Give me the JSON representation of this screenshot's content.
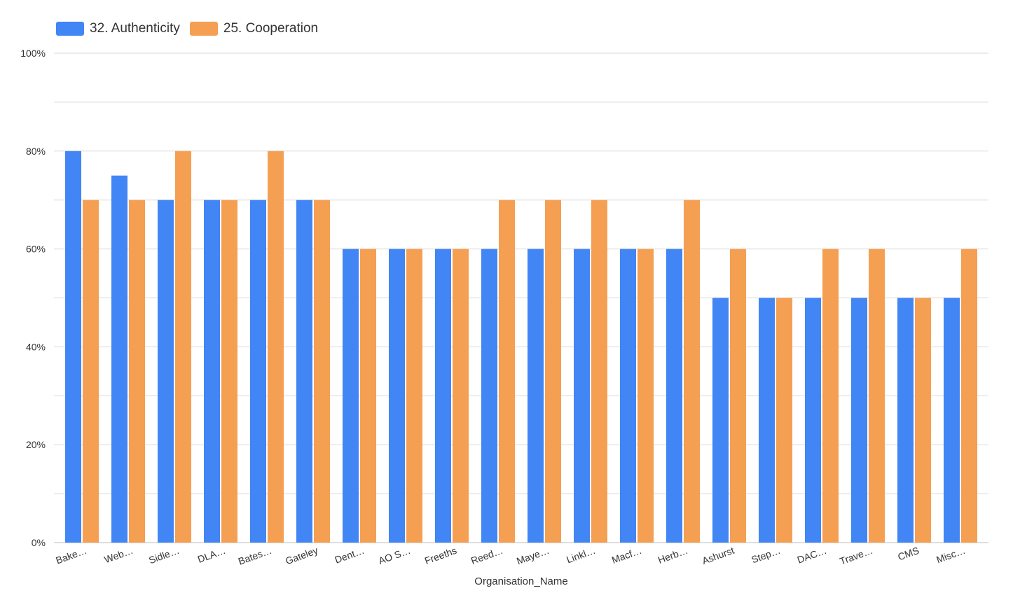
{
  "colors": {
    "series_1": "#4285f4",
    "series_2": "#f59f53",
    "grid": "#d9d9d9",
    "axis_text": "#333333"
  },
  "chart_data": {
    "type": "bar",
    "xlabel": "Organisation_Name",
    "ylabel": "",
    "ylim": [
      0,
      100
    ],
    "yticks": [
      0,
      20,
      40,
      60,
      80,
      100
    ],
    "ytick_labels": [
      "0%",
      "20%",
      "40%",
      "60%",
      "80%",
      "100%"
    ],
    "grid": true,
    "legend_position": "top-left",
    "categories": [
      "Bake…",
      "Web…",
      "Sidle…",
      "DLA…",
      "Bates…",
      "Gateley",
      "Dent…",
      "AO S…",
      "Freeths",
      "Reed…",
      "Maye…",
      "Linkl…",
      "Macf…",
      "Herb…",
      "Ashurst",
      "Step…",
      "DAC…",
      "Trave…",
      "CMS",
      "Misc…"
    ],
    "series": [
      {
        "name": "32. Authenticity",
        "values": [
          80,
          75,
          70,
          70,
          70,
          70,
          60,
          60,
          60,
          60,
          60,
          60,
          60,
          60,
          50,
          50,
          50,
          50,
          50,
          50
        ]
      },
      {
        "name": "25. Cooperation",
        "values": [
          70,
          70,
          80,
          70,
          80,
          70,
          60,
          60,
          60,
          70,
          70,
          70,
          60,
          70,
          60,
          50,
          60,
          60,
          50,
          60
        ]
      }
    ]
  }
}
